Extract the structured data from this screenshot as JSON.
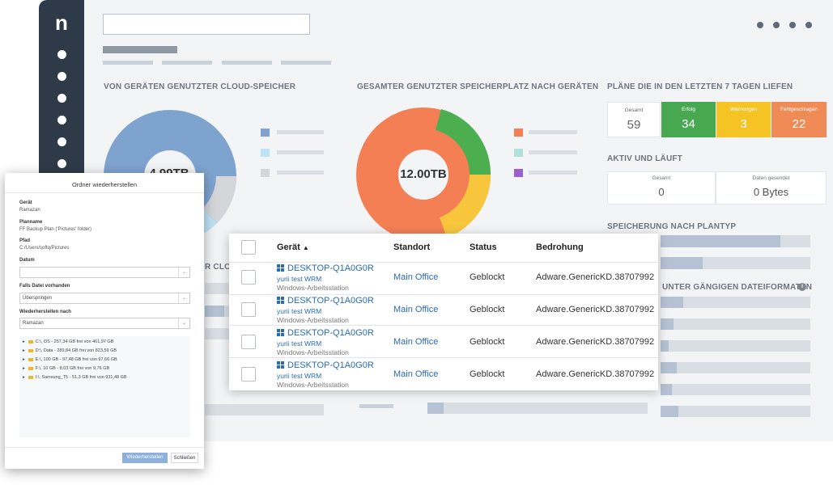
{
  "app": {
    "logo": "n"
  },
  "dashboard": {
    "cloud_title": "VON GERÄTEN GENUTZTER CLOUD-SPEICHER",
    "cloud_value": "4.99TB",
    "total_title": "GESAMTER GENUTZTER SPEICHERPLATZ NACH GERÄTEN",
    "total_value": "12.00TB",
    "plans_title": "PLÄNE DIE IN DEN LETZTEN 7 TAGEN LIEFEN",
    "stats": [
      {
        "label": "Gesamt",
        "value": "59",
        "color": "#ffffff"
      },
      {
        "label": "Erfolg",
        "value": "34",
        "color": "#48a851"
      },
      {
        "label": "Warnungen",
        "value": "3",
        "color": "#f6c325"
      },
      {
        "label": "Fehlgeschlagen",
        "value": "22",
        "color": "#f08a56"
      }
    ],
    "active_title": "AKTIV UND LÄUFT",
    "active": [
      {
        "label": "Gesamt",
        "value": "0"
      },
      {
        "label": "Daten gesendet",
        "value": "0 Bytes"
      }
    ],
    "plantype_title": "SPEICHERUNG NACH PLANTYP",
    "formats_title_partial": "UNTER GÄNGIGEN DATEIFORMATEN",
    "cloud_partial_title": "R CLO",
    "colors": {
      "blue": "#7fa3cf",
      "light_blue": "#bfe3f6",
      "gray": "#d4d6d9",
      "orange": "#f47f55",
      "green": "#4cae4f",
      "yellow": "#f7c63d",
      "teal": "#b0e0dc",
      "purple": "#9b5fd0"
    }
  },
  "table": {
    "headers": {
      "device": "Gerät",
      "sort": "▲",
      "location": "Standort",
      "status": "Status",
      "threat": "Bedrohung"
    },
    "rows": [
      {
        "device": "DESKTOP-Q1A0G0R",
        "user": "yurii test WRM",
        "type": "Windows-Arbeitsstation",
        "location": "Main Office",
        "status": "Geblockt",
        "threat": "Adware.GenericKD.38707992"
      },
      {
        "device": "DESKTOP-Q1A0G0R",
        "user": "yurii test WRM",
        "type": "Windows-Arbeitsstation",
        "location": "Main Office",
        "status": "Geblockt",
        "threat": "Adware.GenericKD.38707992"
      },
      {
        "device": "DESKTOP-Q1A0G0R",
        "user": "yurii test WRM",
        "type": "Windows-Arbeitsstation",
        "location": "Main Office",
        "status": "Geblockt",
        "threat": "Adware.GenericKD.38707992"
      },
      {
        "device": "DESKTOP-Q1A0G0R",
        "user": "yurii test WRM",
        "type": "Windows-Arbeitsstation",
        "location": "Main Office",
        "status": "Geblockt",
        "threat": "Adware.GenericKD.38707992"
      }
    ]
  },
  "dialog": {
    "title": "Ordner wiederherstellen",
    "device_label": "Gerät",
    "device_value": "Ramazan",
    "plan_label": "Planname",
    "plan_value": "FF Backup Plan ('Pictures' folder)",
    "path_label": "Pfad",
    "path_value": "C:/Users/softq/Pictures",
    "date_label": "Datum",
    "date_value": "",
    "exists_label": "Falls Datei vorhanden",
    "exists_value": "Überspringen",
    "restore_to_label": "Wiederherstellen nach",
    "restore_to_value": "Ramazan",
    "drives": [
      "C:\\, OS - 257,34 GB frei von 461,97 GB",
      "D:\\, Data - 289,84 GB frei von 823,59 GB",
      "E:\\, 100 GB - 97,48 GB frei von 97,66 GB",
      "F:\\, 10 GB - 8,03 GB frei von 9,76 GB",
      "I:\\, Samsung_T5 - 51,3 GB frei von 931,48 GB"
    ],
    "restore_button": "Wiederherstellen",
    "close_button": "Schließen"
  }
}
